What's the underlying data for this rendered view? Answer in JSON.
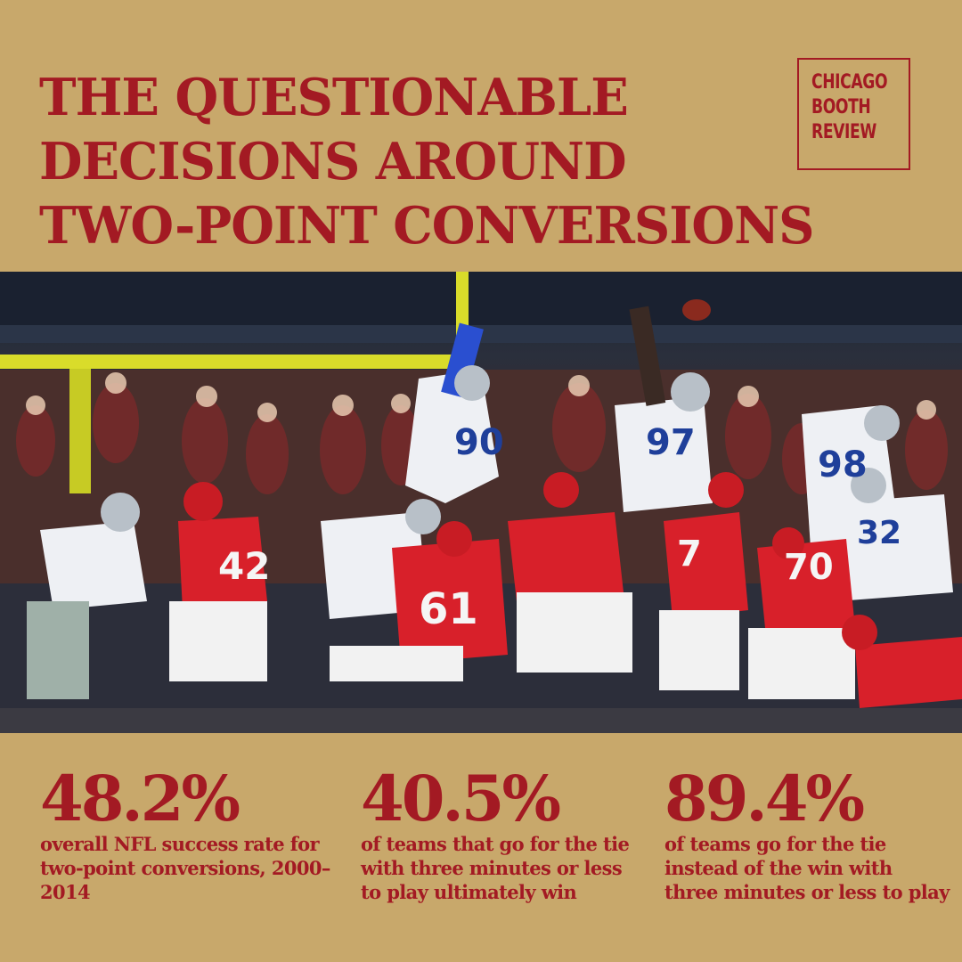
{
  "headline": {
    "lines": [
      "THE QUESTIONABLE",
      "DECISIONS AROUND",
      "TWO-POINT CONVERSIONS"
    ]
  },
  "logo": {
    "lines": [
      "CHICAGO",
      "BOOTH",
      "REVIEW"
    ]
  },
  "photo": {
    "jersey_numbers": [
      "90",
      "97",
      "98",
      "32",
      "42",
      "61",
      "70",
      "7"
    ]
  },
  "stats": [
    {
      "value": "48.2%",
      "description": "overall NFL success rate for two-point conversions, 2000–2014"
    },
    {
      "value": "40.5%",
      "description": "of teams that go for the tie with three minutes or less to play ultimately win"
    },
    {
      "value": "89.4%",
      "description": "of teams go for the tie instead of the win with three minutes or less to play"
    }
  ],
  "colors": {
    "background": "#c8a86b",
    "accent": "#a31a23"
  }
}
